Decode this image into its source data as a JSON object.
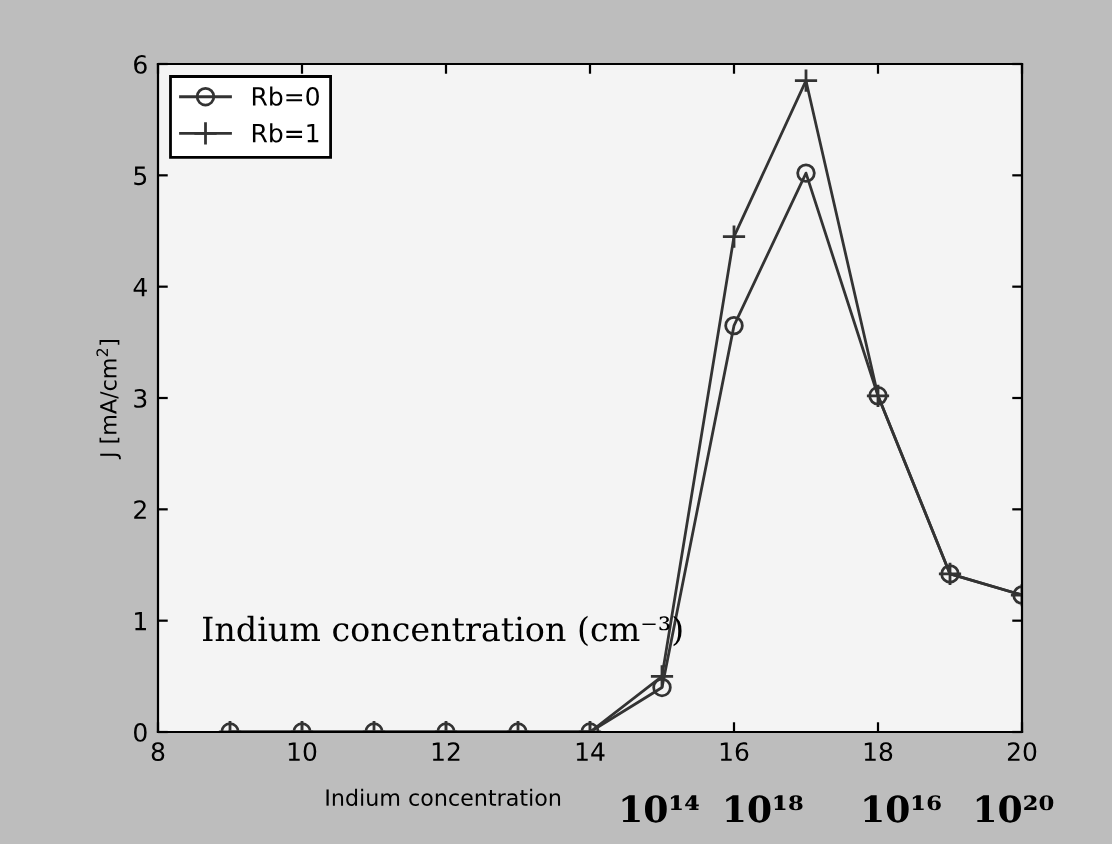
{
  "chart_data": {
    "type": "line",
    "xlabel": "Indium concentration",
    "ylabel": "J [mA/cm$^{2}$]",
    "x": [
      9,
      10,
      11,
      12,
      13,
      14,
      15,
      16,
      17,
      18,
      19,
      20
    ],
    "series": [
      {
        "name": "Rb=0",
        "color": "#333333",
        "marker": "circle",
        "values": [
          0,
          0,
          0,
          0,
          0,
          0,
          0.4,
          3.65,
          5.02,
          3.02,
          1.42,
          1.23
        ]
      },
      {
        "name": "Rb=1",
        "color": "#333333",
        "marker": "cross",
        "values": [
          0,
          0,
          0,
          0,
          0,
          0,
          0.5,
          4.45,
          5.85,
          3.02,
          1.42,
          1.23
        ]
      }
    ],
    "xlim": [
      8,
      20
    ],
    "xticks": [
      8,
      10,
      12,
      14,
      16,
      18,
      20
    ],
    "ylim": [
      0,
      6
    ],
    "yticks": [
      0,
      1,
      2,
      3,
      4,
      5,
      6
    ],
    "grid": false,
    "legend": "top left",
    "line_style": "solid",
    "annotations": [
      "Indium concentration (cm⁻³)",
      "10¹⁴",
      "10¹⁸",
      "10¹⁶",
      "10²⁰"
    ]
  }
}
